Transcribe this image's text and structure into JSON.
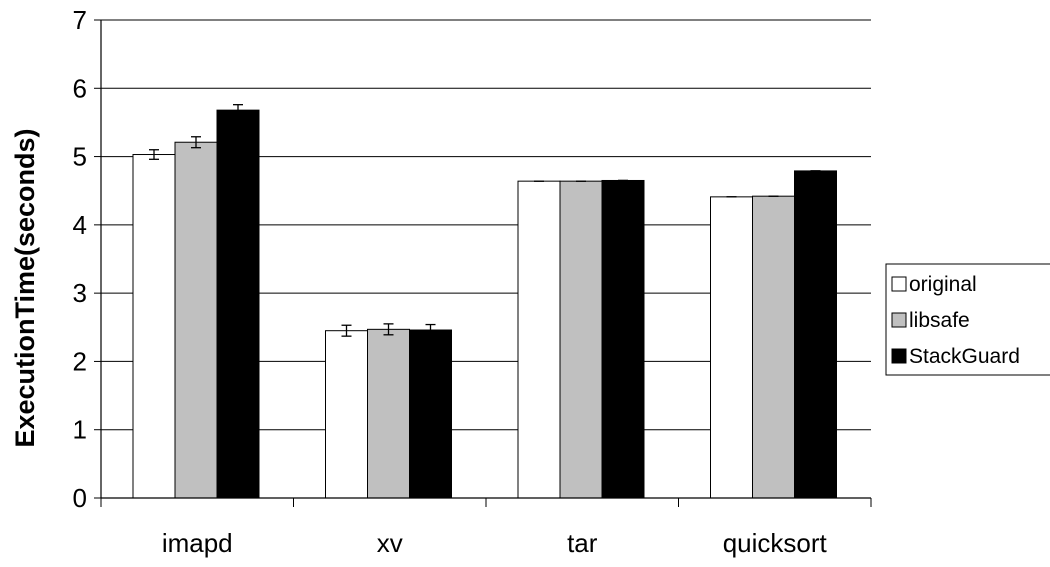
{
  "chart_data": {
    "type": "bar",
    "title": "",
    "xlabel": "",
    "ylabel": "ExecutionTime(seconds)",
    "ylim": [
      0,
      7
    ],
    "yticks": [
      0,
      1,
      2,
      3,
      4,
      5,
      6,
      7
    ],
    "grid": true,
    "legend_position": "right",
    "categories": [
      "imapd",
      "xv",
      "tar",
      "quicksort"
    ],
    "series": [
      {
        "name": "original",
        "color": "#ffffff",
        "values": [
          5.03,
          2.45,
          4.64,
          4.41
        ],
        "errors": [
          0.07,
          0.08,
          0.0,
          0.0
        ]
      },
      {
        "name": "libsafe",
        "color": "#c0c0c0",
        "values": [
          5.21,
          2.47,
          4.64,
          4.42
        ],
        "errors": [
          0.08,
          0.08,
          0.0,
          0.0
        ]
      },
      {
        "name": "StackGuard",
        "color": "#000000",
        "values": [
          5.68,
          2.46,
          4.65,
          4.79
        ],
        "errors": [
          0.08,
          0.08,
          0.0,
          0.0
        ]
      }
    ]
  }
}
